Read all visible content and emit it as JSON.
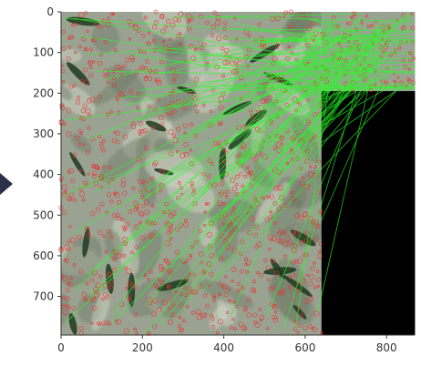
{
  "chart_data": {
    "type": "image",
    "x_ticks": [
      0,
      200,
      400,
      600,
      800
    ],
    "y_ticks": [
      0,
      100,
      200,
      300,
      400,
      500,
      600,
      700
    ],
    "xlim": [
      0,
      870
    ],
    "ylim": [
      795,
      0
    ],
    "left_image_extent": {
      "x": [
        0,
        640
      ],
      "y": [
        0,
        795
      ]
    },
    "right_image_extent": {
      "x": [
        640,
        870
      ],
      "y": [
        0,
        195
      ]
    },
    "black_region_extent": {
      "x": [
        640,
        870
      ],
      "y": [
        195,
        795
      ]
    },
    "match_line_count": 90,
    "keypoint_count": 900,
    "colors": {
      "lines": "#22ff22",
      "keypoints": "#e83030",
      "background_image": "#9aa392",
      "black": "#000000",
      "decor_arrow": "#2a3147"
    }
  }
}
